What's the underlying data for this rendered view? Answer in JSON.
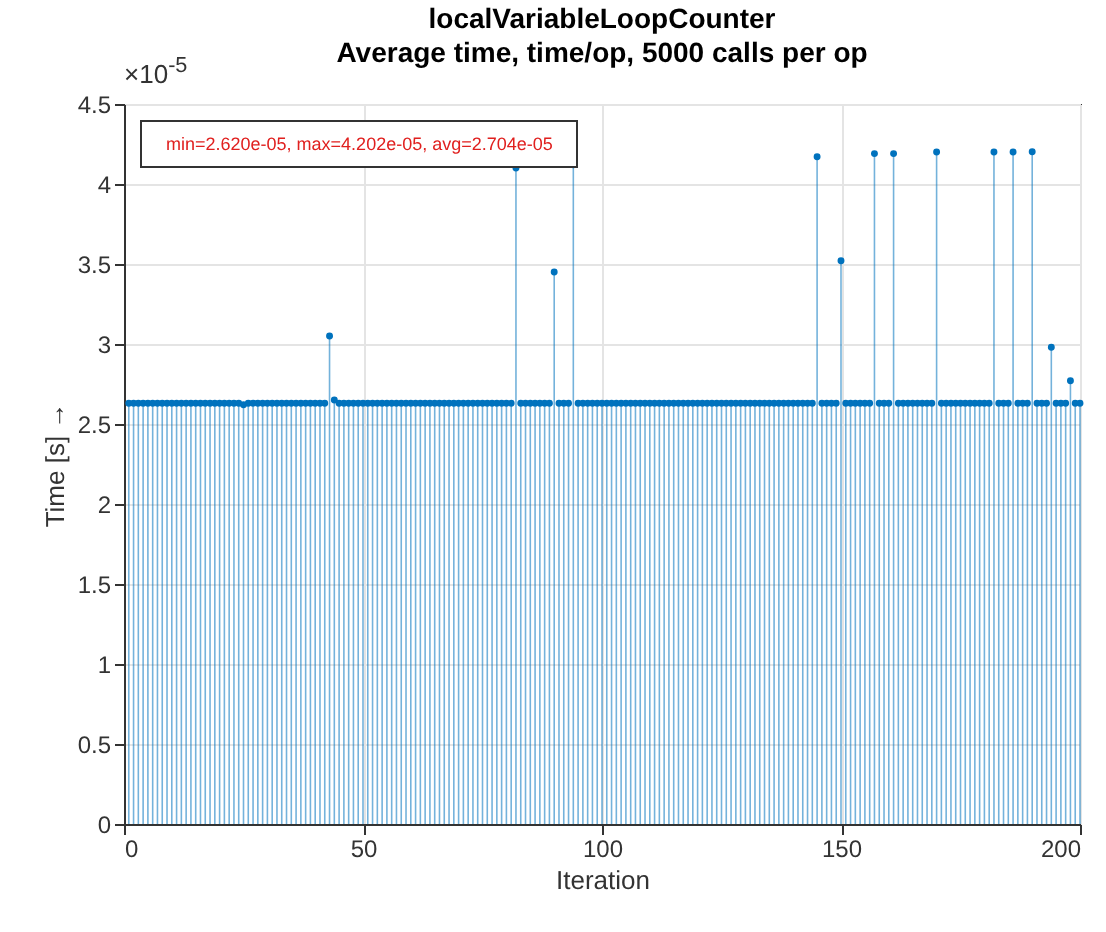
{
  "chart_data": {
    "type": "lollipop",
    "title": "localVariableLoopCounter",
    "subtitle": "Average time, time/op, 5000 calls per op",
    "xlabel": "Iteration",
    "ylabel": "Time [s] →",
    "annotations": [
      "×10$^{-5}$",
      "min=2.620e-05, max=4.202e-05, avg=2.704e-05"
    ],
    "xlim": [
      0,
      200
    ],
    "xticks": [
      0,
      50,
      100,
      150,
      200
    ],
    "ylim": [
      0,
      4.5
    ],
    "yticks": [
      0,
      0.5,
      1,
      1.5,
      2,
      2.5,
      3,
      3.5,
      4,
      4.5
    ],
    "grid": true,
    "marker": "circle",
    "series": [
      {
        "color": "#0072bd",
        "x": [
          1,
          2,
          3,
          4,
          5,
          6,
          7,
          8,
          9,
          10,
          11,
          12,
          13,
          14,
          15,
          16,
          17,
          18,
          19,
          20,
          21,
          22,
          23,
          24,
          25,
          26,
          27,
          28,
          29,
          30,
          31,
          32,
          33,
          34,
          35,
          36,
          37,
          38,
          39,
          40,
          41,
          42,
          43,
          44,
          45,
          46,
          47,
          48,
          49,
          50,
          51,
          52,
          53,
          54,
          55,
          56,
          57,
          58,
          59,
          60,
          61,
          62,
          63,
          64,
          65,
          66,
          67,
          68,
          69,
          70,
          71,
          72,
          73,
          74,
          75,
          76,
          77,
          78,
          79,
          80,
          81,
          82,
          83,
          84,
          85,
          86,
          87,
          88,
          89,
          90,
          91,
          92,
          93,
          94,
          95,
          96,
          97,
          98,
          99,
          100,
          101,
          102,
          103,
          104,
          105,
          106,
          107,
          108,
          109,
          110,
          111,
          112,
          113,
          114,
          115,
          116,
          117,
          118,
          119,
          120,
          121,
          122,
          123,
          124,
          125,
          126,
          127,
          128,
          129,
          130,
          131,
          132,
          133,
          134,
          135,
          136,
          137,
          138,
          139,
          140,
          141,
          142,
          143,
          144,
          145,
          146,
          147,
          148,
          149,
          150,
          151,
          152,
          153,
          154,
          155,
          156,
          157,
          158,
          159,
          160,
          161,
          162,
          163,
          164,
          165,
          166,
          167,
          168,
          169,
          170,
          171,
          172,
          173,
          174,
          175,
          176,
          177,
          178,
          179,
          180,
          181,
          182,
          183,
          184,
          185,
          186,
          187,
          188,
          189,
          190,
          191,
          192,
          193,
          194,
          195,
          196,
          197,
          198,
          199,
          200
        ],
        "values": [
          2.63,
          2.63,
          2.63,
          2.63,
          2.63,
          2.63,
          2.63,
          2.63,
          2.63,
          2.63,
          2.63,
          2.63,
          2.63,
          2.63,
          2.63,
          2.63,
          2.63,
          2.63,
          2.63,
          2.63,
          2.63,
          2.63,
          2.63,
          2.63,
          2.62,
          2.63,
          2.63,
          2.63,
          2.63,
          2.63,
          2.63,
          2.63,
          2.63,
          2.63,
          2.63,
          2.63,
          2.63,
          2.63,
          2.63,
          2.63,
          2.63,
          2.63,
          3.05,
          2.65,
          2.63,
          2.63,
          2.63,
          2.63,
          2.63,
          2.63,
          2.63,
          2.63,
          2.63,
          2.63,
          2.63,
          2.63,
          2.63,
          2.63,
          2.63,
          2.63,
          2.63,
          2.63,
          2.63,
          2.63,
          2.63,
          2.63,
          2.63,
          2.63,
          2.63,
          2.63,
          2.63,
          2.63,
          2.63,
          2.63,
          2.63,
          2.63,
          2.63,
          2.63,
          2.63,
          2.63,
          2.63,
          4.1,
          2.63,
          2.63,
          2.63,
          2.63,
          2.63,
          2.63,
          2.63,
          3.45,
          2.63,
          2.63,
          2.63,
          4.12,
          2.63,
          2.63,
          2.63,
          2.63,
          2.63,
          2.63,
          2.63,
          2.63,
          2.63,
          2.63,
          2.63,
          2.63,
          2.63,
          2.63,
          2.63,
          2.63,
          2.63,
          2.63,
          2.63,
          2.63,
          2.63,
          2.63,
          2.63,
          2.63,
          2.63,
          2.63,
          2.63,
          2.63,
          2.63,
          2.63,
          2.63,
          2.63,
          2.63,
          2.63,
          2.63,
          2.63,
          2.63,
          2.63,
          2.63,
          2.63,
          2.63,
          2.63,
          2.63,
          2.63,
          2.63,
          2.63,
          2.63,
          2.63,
          2.63,
          2.63,
          4.17,
          2.63,
          2.63,
          2.63,
          2.63,
          3.52,
          2.63,
          2.63,
          2.63,
          2.63,
          2.63,
          2.63,
          4.19,
          2.63,
          2.63,
          2.63,
          4.19,
          2.63,
          2.63,
          2.63,
          2.63,
          2.63,
          2.63,
          2.63,
          2.63,
          4.2,
          2.63,
          2.63,
          2.63,
          2.63,
          2.63,
          2.63,
          2.63,
          2.63,
          2.63,
          2.63,
          2.63,
          4.2,
          2.63,
          2.63,
          2.63,
          4.2,
          2.63,
          2.63,
          2.63,
          4.202,
          2.63,
          2.63,
          2.63,
          2.98,
          2.63,
          2.63,
          2.63,
          2.77,
          2.63,
          2.63
        ]
      }
    ]
  }
}
